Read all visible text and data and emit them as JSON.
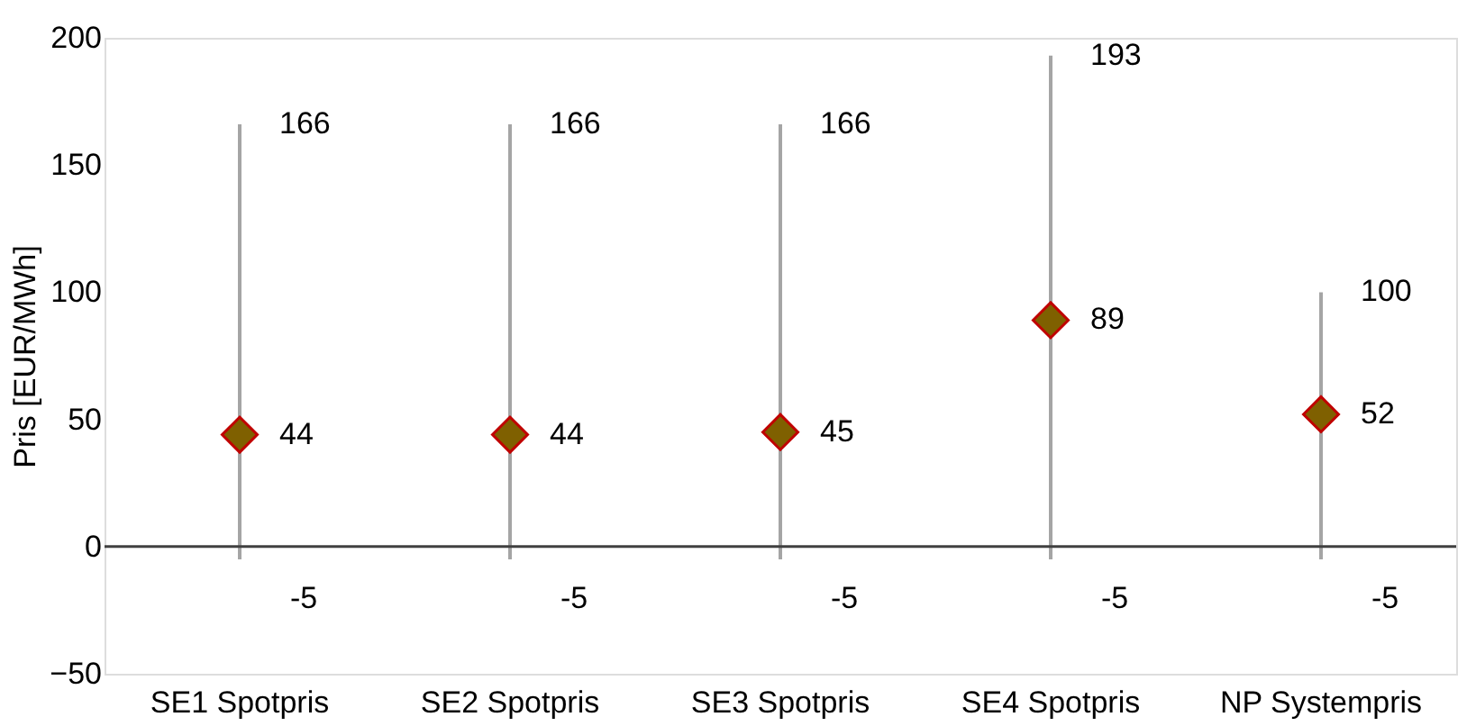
{
  "chart_data": {
    "type": "scatter",
    "ylabel": "Pris [EUR/MWh]",
    "categories": [
      "SE1 Spotpris",
      "SE2 Spotpris",
      "SE3 Spotpris",
      "SE4 Spotpris",
      "NP Systempris"
    ],
    "series": [
      {
        "color": "#7f6000",
        "values": [
          44,
          44,
          45,
          89,
          52
        ],
        "errors": [
          [
            -5,
            166
          ],
          [
            -5,
            166
          ],
          [
            -5,
            166
          ],
          [
            -5,
            193
          ],
          [
            -5,
            100
          ]
        ]
      }
    ],
    "marker": "diamond",
    "data_labels": true,
    "ylim": [
      -50,
      200
    ],
    "yticks": [
      -50,
      0,
      50,
      100,
      150,
      200
    ],
    "ref_lines": [
      {
        "axis": "y",
        "value": 0,
        "color": "#404040"
      }
    ],
    "annotations": [
      {
        "text": "166",
        "x": "SE1 Spotpris",
        "y": 166
      },
      {
        "text": "166",
        "x": "SE2 Spotpris",
        "y": 166
      },
      {
        "text": "166",
        "x": "SE3 Spotpris",
        "y": 166
      },
      {
        "text": "193",
        "x": "SE4 Spotpris",
        "y": 193
      },
      {
        "text": "100",
        "x": "NP Systempris",
        "y": 100
      },
      {
        "text": "-5",
        "x": "SE1 Spotpris",
        "y": -5
      },
      {
        "text": "-5",
        "x": "SE2 Spotpris",
        "y": -5
      },
      {
        "text": "-5",
        "x": "SE3 Spotpris",
        "y": -5
      },
      {
        "text": "-5",
        "x": "SE4 Spotpris",
        "y": -5
      },
      {
        "text": "-5",
        "x": "NP Systempris",
        "y": -5
      }
    ]
  }
}
